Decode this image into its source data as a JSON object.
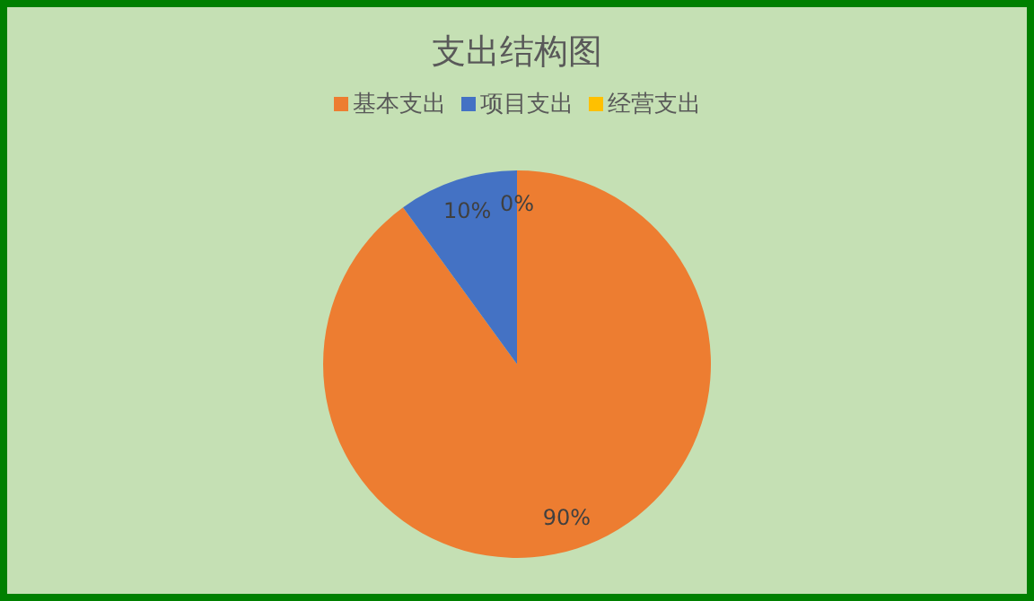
{
  "chart_data": {
    "type": "pie",
    "title": "支出结构图",
    "categories": [
      "基本支出",
      "项目支出",
      "经营支出"
    ],
    "values": [
      90,
      10,
      0
    ],
    "colors": [
      "#ed7d31",
      "#4472c4",
      "#ffc000"
    ],
    "value_labels": [
      "90%",
      "10%",
      "0%"
    ],
    "legend": "top"
  }
}
